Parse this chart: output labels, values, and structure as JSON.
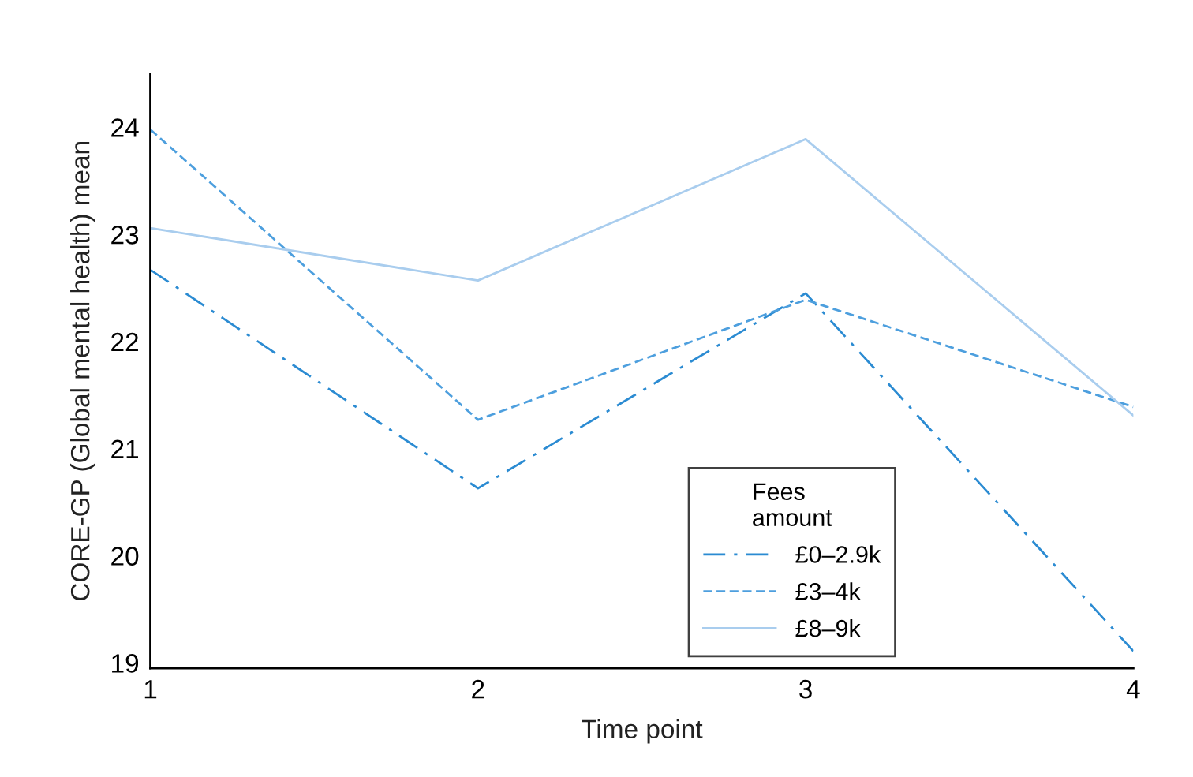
{
  "chart_data": {
    "type": "line",
    "xlabel": "Time point",
    "ylabel": "CORE-GP (Global mental health) mean",
    "legend_title": "Fees\namount",
    "x": [
      1,
      2,
      3,
      4
    ],
    "xlim": [
      1,
      4
    ],
    "xticks": [
      1,
      2,
      3,
      4
    ],
    "ylim": [
      18.95,
      24.5
    ],
    "yticks": [
      19,
      20,
      21,
      22,
      23,
      24
    ],
    "grid": false,
    "legend": "bottom right",
    "marker": "none",
    "series": [
      {
        "name": "£0–2.9k",
        "color": "#2b8bd2",
        "line_style": "dashdot",
        "values": [
          22.67,
          20.63,
          22.45,
          19.11
        ]
      },
      {
        "name": "£3–4k",
        "color": "#4d9fde",
        "line_style": "dashed",
        "values": [
          23.98,
          21.27,
          22.39,
          21.39
        ]
      },
      {
        "name": "£8–9k",
        "color": "#a9cdee",
        "line_style": "solid",
        "values": [
          23.06,
          22.57,
          23.89,
          21.31
        ]
      }
    ]
  }
}
